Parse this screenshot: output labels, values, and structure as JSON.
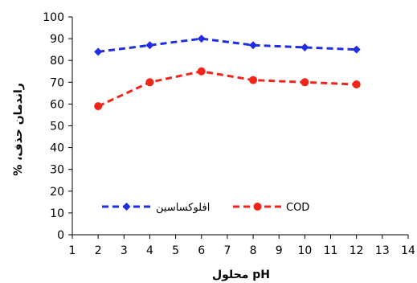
{
  "chart_data": {
    "type": "line",
    "title": "",
    "xlabel": "pH محلول",
    "ylabel": "راندمان حذف، %",
    "xlim": [
      1,
      14
    ],
    "ylim": [
      0,
      100
    ],
    "x_ticks": [
      1,
      2,
      3,
      4,
      5,
      6,
      7,
      8,
      9,
      10,
      11,
      12,
      13,
      14
    ],
    "y_ticks": [
      0,
      10,
      20,
      30,
      40,
      50,
      60,
      70,
      80,
      90,
      100
    ],
    "grid": false,
    "legend_position": "bottom-inside",
    "series": [
      {
        "name": "افلوکساسین",
        "color": "#1f2ee0",
        "marker": "diamond",
        "x": [
          2,
          4,
          6,
          8,
          10,
          12
        ],
        "y": [
          84,
          87,
          90,
          87,
          86,
          85
        ]
      },
      {
        "name": "COD",
        "color": "#f0261a",
        "marker": "circle",
        "x": [
          2,
          4,
          6,
          8,
          10,
          12
        ],
        "y": [
          59,
          70,
          75,
          71,
          70,
          69
        ]
      }
    ]
  }
}
